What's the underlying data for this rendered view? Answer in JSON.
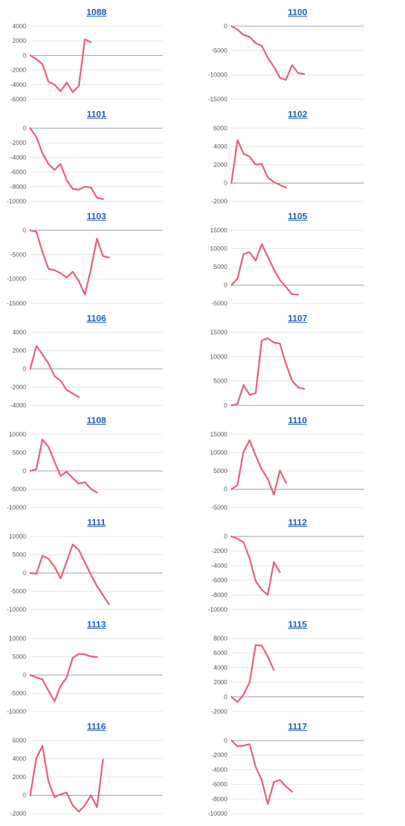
{
  "theme": {
    "line_color": "#e8607a",
    "grid_color": "#dddddd",
    "title_color": "#1f5fbf"
  },
  "chart_data": [
    {
      "type": "line",
      "title": "1088",
      "ylim": [
        -6000,
        4000
      ],
      "yticks": [
        4000,
        2000,
        0,
        -2000,
        -4000,
        -6000
      ],
      "series": [
        {
          "values": [
            0,
            -500,
            -1200,
            -3600,
            -4000,
            -4900,
            -3700,
            -5000,
            -4200,
            2200,
            1800
          ]
        }
      ]
    },
    {
      "type": "line",
      "title": "1100",
      "ylim": [
        -15000,
        0
      ],
      "yticks": [
        0,
        -5000,
        -10000,
        -15000
      ],
      "series": [
        {
          "values": [
            0,
            -700,
            -1800,
            -2200,
            -3500,
            -4000,
            -6500,
            -8300,
            -10600,
            -11000,
            -8000,
            -9600,
            -9800
          ]
        }
      ]
    },
    {
      "type": "line",
      "title": "1101",
      "ylim": [
        -10000,
        0
      ],
      "yticks": [
        0,
        -2000,
        -4000,
        -6000,
        -8000,
        -10000
      ],
      "series": [
        {
          "values": [
            0,
            -1200,
            -3400,
            -4900,
            -5700,
            -4900,
            -7100,
            -8300,
            -8400,
            -8000,
            -8100,
            -9500,
            -9700
          ]
        }
      ]
    },
    {
      "type": "line",
      "title": "1102",
      "ylim": [
        -2000,
        6000
      ],
      "yticks": [
        6000,
        4000,
        2000,
        0,
        -2000
      ],
      "series": [
        {
          "values": [
            0,
            4700,
            3200,
            2900,
            2000,
            2100,
            600,
            100,
            -200,
            -500
          ]
        }
      ]
    },
    {
      "type": "line",
      "title": "1103",
      "ylim": [
        -15000,
        0
      ],
      "yticks": [
        0,
        -5000,
        -10000,
        -15000
      ],
      "series": [
        {
          "values": [
            0,
            -300,
            -4400,
            -7900,
            -8200,
            -8800,
            -9700,
            -8500,
            -10400,
            -13200,
            -8000,
            -1700,
            -5300,
            -5600
          ]
        }
      ]
    },
    {
      "type": "line",
      "title": "1105",
      "ylim": [
        -5000,
        15000
      ],
      "yticks": [
        15000,
        10000,
        5000,
        0,
        -5000
      ],
      "series": [
        {
          "values": [
            0,
            1800,
            8500,
            9000,
            6700,
            11200,
            7800,
            4300,
            1400,
            -500,
            -2500,
            -2600
          ]
        }
      ]
    },
    {
      "type": "line",
      "title": "1106",
      "ylim": [
        -4000,
        4000
      ],
      "yticks": [
        4000,
        2000,
        0,
        -2000,
        -4000
      ],
      "series": [
        {
          "values": [
            0,
            2500,
            1600,
            600,
            -800,
            -1300,
            -2300,
            -2700,
            -3100
          ]
        }
      ]
    },
    {
      "type": "line",
      "title": "1107",
      "ylim": [
        0,
        15000
      ],
      "yticks": [
        15000,
        10000,
        5000,
        0
      ],
      "series": [
        {
          "values": [
            0,
            300,
            4200,
            2200,
            2500,
            13300,
            13800,
            12900,
            12700,
            8500,
            5100,
            3700,
            3400
          ]
        }
      ]
    },
    {
      "type": "line",
      "title": "1108",
      "ylim": [
        -10000,
        10000
      ],
      "yticks": [
        10000,
        5000,
        0,
        -5000,
        -10000
      ],
      "series": [
        {
          "values": [
            0,
            500,
            8600,
            6600,
            2500,
            -1400,
            -200,
            -2000,
            -3500,
            -3100,
            -4900,
            -5900
          ]
        }
      ]
    },
    {
      "type": "line",
      "title": "1110",
      "ylim": [
        -5000,
        15000
      ],
      "yticks": [
        15000,
        10000,
        5000,
        0,
        -5000
      ],
      "series": [
        {
          "values": [
            0,
            1100,
            10300,
            13400,
            9200,
            5400,
            2800,
            -1500,
            5100,
            1800
          ]
        }
      ]
    },
    {
      "type": "line",
      "title": "1111",
      "ylim": [
        -10000,
        10000
      ],
      "yticks": [
        10000,
        5000,
        0,
        -5000,
        -10000
      ],
      "series": [
        {
          "values": [
            0,
            -200,
            4700,
            3900,
            1700,
            -1500,
            3100,
            7800,
            6300,
            2900,
            -500,
            -3600,
            -6100,
            -8600
          ]
        }
      ]
    },
    {
      "type": "line",
      "title": "1112",
      "ylim": [
        -10000,
        0
      ],
      "yticks": [
        0,
        -2000,
        -4000,
        -6000,
        -8000,
        -10000
      ],
      "series": [
        {
          "values": [
            0,
            -300,
            -800,
            -3000,
            -6100,
            -7300,
            -8000,
            -3500,
            -4900
          ]
        }
      ]
    },
    {
      "type": "line",
      "title": "1113",
      "ylim": [
        -10000,
        10000
      ],
      "yticks": [
        10000,
        5000,
        0,
        -5000,
        -10000
      ],
      "series": [
        {
          "values": [
            0,
            -700,
            -1200,
            -4300,
            -7200,
            -3000,
            -700,
            4700,
            5800,
            5600,
            5100,
            4900
          ]
        }
      ]
    },
    {
      "type": "line",
      "title": "1115",
      "ylim": [
        -2000,
        8000
      ],
      "yticks": [
        8000,
        6000,
        4000,
        2000,
        0,
        -2000
      ],
      "series": [
        {
          "values": [
            0,
            -700,
            300,
            2000,
            7100,
            7000,
            5500,
            3700
          ]
        }
      ]
    },
    {
      "type": "line",
      "title": "1116",
      "ylim": [
        -2000,
        6000
      ],
      "yticks": [
        6000,
        4000,
        2000,
        0,
        -2000
      ],
      "series": [
        {
          "values": [
            0,
            4100,
            5400,
            1500,
            -200,
            100,
            300,
            -1100,
            -1800,
            -1100,
            0,
            -1300,
            3900
          ]
        }
      ]
    },
    {
      "type": "line",
      "title": "1117",
      "ylim": [
        -10000,
        0
      ],
      "yticks": [
        0,
        -2000,
        -4000,
        -6000,
        -8000,
        -10000
      ],
      "series": [
        {
          "values": [
            0,
            -800,
            -700,
            -500,
            -3600,
            -5400,
            -8700,
            -5700,
            -5400,
            -6300,
            -7000
          ]
        }
      ]
    }
  ]
}
